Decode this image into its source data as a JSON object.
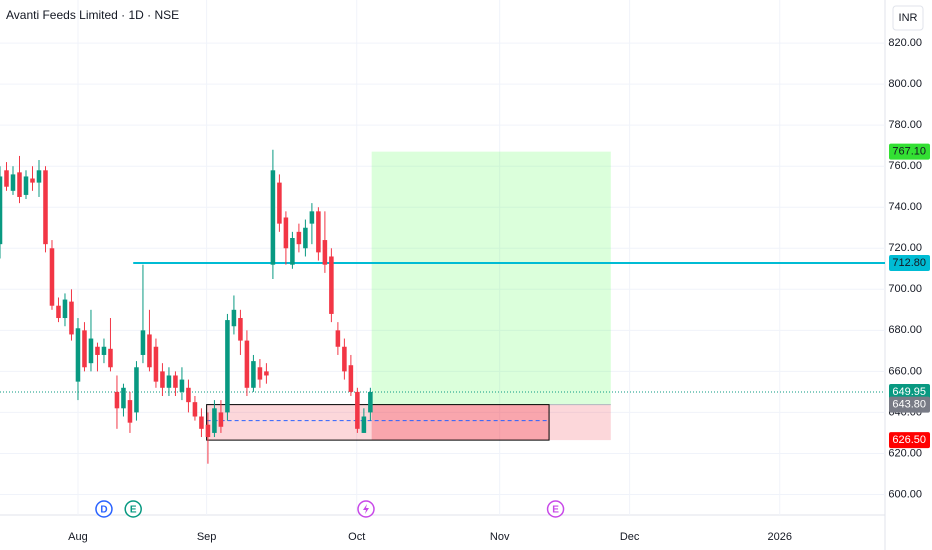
{
  "chart_data": {
    "type": "candlestick",
    "title": "Avanti Feeds Limited · 1D · NSE",
    "currency": "INR",
    "up_color": "#089981",
    "down_color": "#f23645",
    "open": [
      722,
      758,
      748,
      757,
      746,
      754,
      752,
      758,
      720,
      692,
      686,
      694,
      655,
      680,
      664,
      672,
      668,
      671,
      650,
      642,
      646,
      640,
      668,
      678,
      672,
      660,
      652,
      658,
      650,
      652,
      645,
      638,
      634,
      630,
      640,
      640,
      682,
      686,
      675,
      652,
      662,
      660,
      712,
      752,
      735,
      712,
      728,
      720,
      732,
      738,
      724,
      716,
      680,
      672,
      663,
      650,
      630,
      640
    ],
    "high": [
      760,
      762,
      760,
      765,
      758,
      760,
      763,
      760,
      724,
      696,
      698,
      700,
      686,
      684,
      690,
      674,
      676,
      686,
      658,
      654,
      650,
      665,
      712,
      690,
      676,
      664,
      662,
      660,
      662,
      656,
      648,
      642,
      640,
      646,
      646,
      688,
      697,
      690,
      680,
      668,
      666,
      664,
      768,
      756,
      738,
      728,
      732,
      734,
      742,
      740,
      738,
      720,
      684,
      676,
      668,
      652,
      642,
      652
    ],
    "low": [
      715,
      748,
      746,
      742,
      744,
      748,
      745,
      718,
      690,
      684,
      682,
      675,
      646,
      660,
      660,
      660,
      664,
      660,
      632,
      638,
      630,
      636,
      664,
      660,
      652,
      648,
      648,
      648,
      646,
      640,
      636,
      628,
      615,
      628,
      630,
      636,
      678,
      668,
      648,
      650,
      652,
      654,
      705,
      728,
      712,
      710,
      718,
      716,
      722,
      714,
      708,
      684,
      668,
      656,
      648,
      630,
      630,
      636
    ],
    "close": [
      755,
      750,
      756,
      745,
      755,
      752,
      758,
      722,
      692,
      686,
      695,
      678,
      681,
      662,
      676,
      668,
      672,
      662,
      642,
      652,
      635,
      662,
      680,
      662,
      655,
      652,
      658,
      652,
      656,
      645,
      638,
      632,
      628,
      642,
      633,
      685,
      690,
      675,
      652,
      665,
      656,
      658,
      758,
      732,
      720,
      725,
      722,
      730,
      738,
      718,
      712,
      688,
      672,
      660,
      650,
      632,
      638,
      649.95
    ],
    "xlim": [
      0,
      136.2
    ],
    "xticks": [
      {
        "value": 12,
        "label": "Aug"
      },
      {
        "value": 31.8,
        "label": "Sep"
      },
      {
        "value": 54.9,
        "label": "Oct"
      },
      {
        "value": 76.9,
        "label": "Nov"
      },
      {
        "value": 96.9,
        "label": "Dec"
      },
      {
        "value": 120,
        "label": "2026"
      }
    ],
    "ylim": [
      590,
      841
    ],
    "yticks": [
      {
        "value": 600,
        "label": "600.00"
      },
      {
        "value": 620,
        "label": "620.00"
      },
      {
        "value": 640,
        "label": "640.00"
      },
      {
        "value": 660,
        "label": "660.00"
      },
      {
        "value": 680,
        "label": "680.00"
      },
      {
        "value": 700,
        "label": "700.00"
      },
      {
        "value": 720,
        "label": "720.00"
      },
      {
        "value": 740,
        "label": "740.00"
      },
      {
        "value": 760,
        "label": "760.00"
      },
      {
        "value": 780,
        "label": "780.00"
      },
      {
        "value": 800,
        "label": "800.00"
      },
      {
        "value": 820,
        "label": "820.00"
      }
    ],
    "grid": true,
    "hline": {
      "value": 712.8,
      "label": "712.80",
      "color": "#00bcd4",
      "start": 20.5
    },
    "current": {
      "value": 649.95,
      "label": "649.95",
      "color": "#089981"
    },
    "position": {
      "x": [
        31.8,
        57.2,
        84.5,
        94
      ],
      "target": {
        "value": 767.1,
        "label": "767.10",
        "color": "#33e033"
      },
      "entry": {
        "value": 643.8,
        "label": "643.80",
        "color": "#787b86"
      },
      "stop": {
        "value": 626.5,
        "label": "626.50",
        "color": "#f00"
      },
      "mid": 636
    },
    "events": [
      {
        "x": 16,
        "label": "D",
        "color": "#2962ff"
      },
      {
        "x": 20.5,
        "label": "E",
        "color": "#089981"
      },
      {
        "x": 85.5,
        "label": "E",
        "color": "#c848e8"
      }
    ]
  }
}
